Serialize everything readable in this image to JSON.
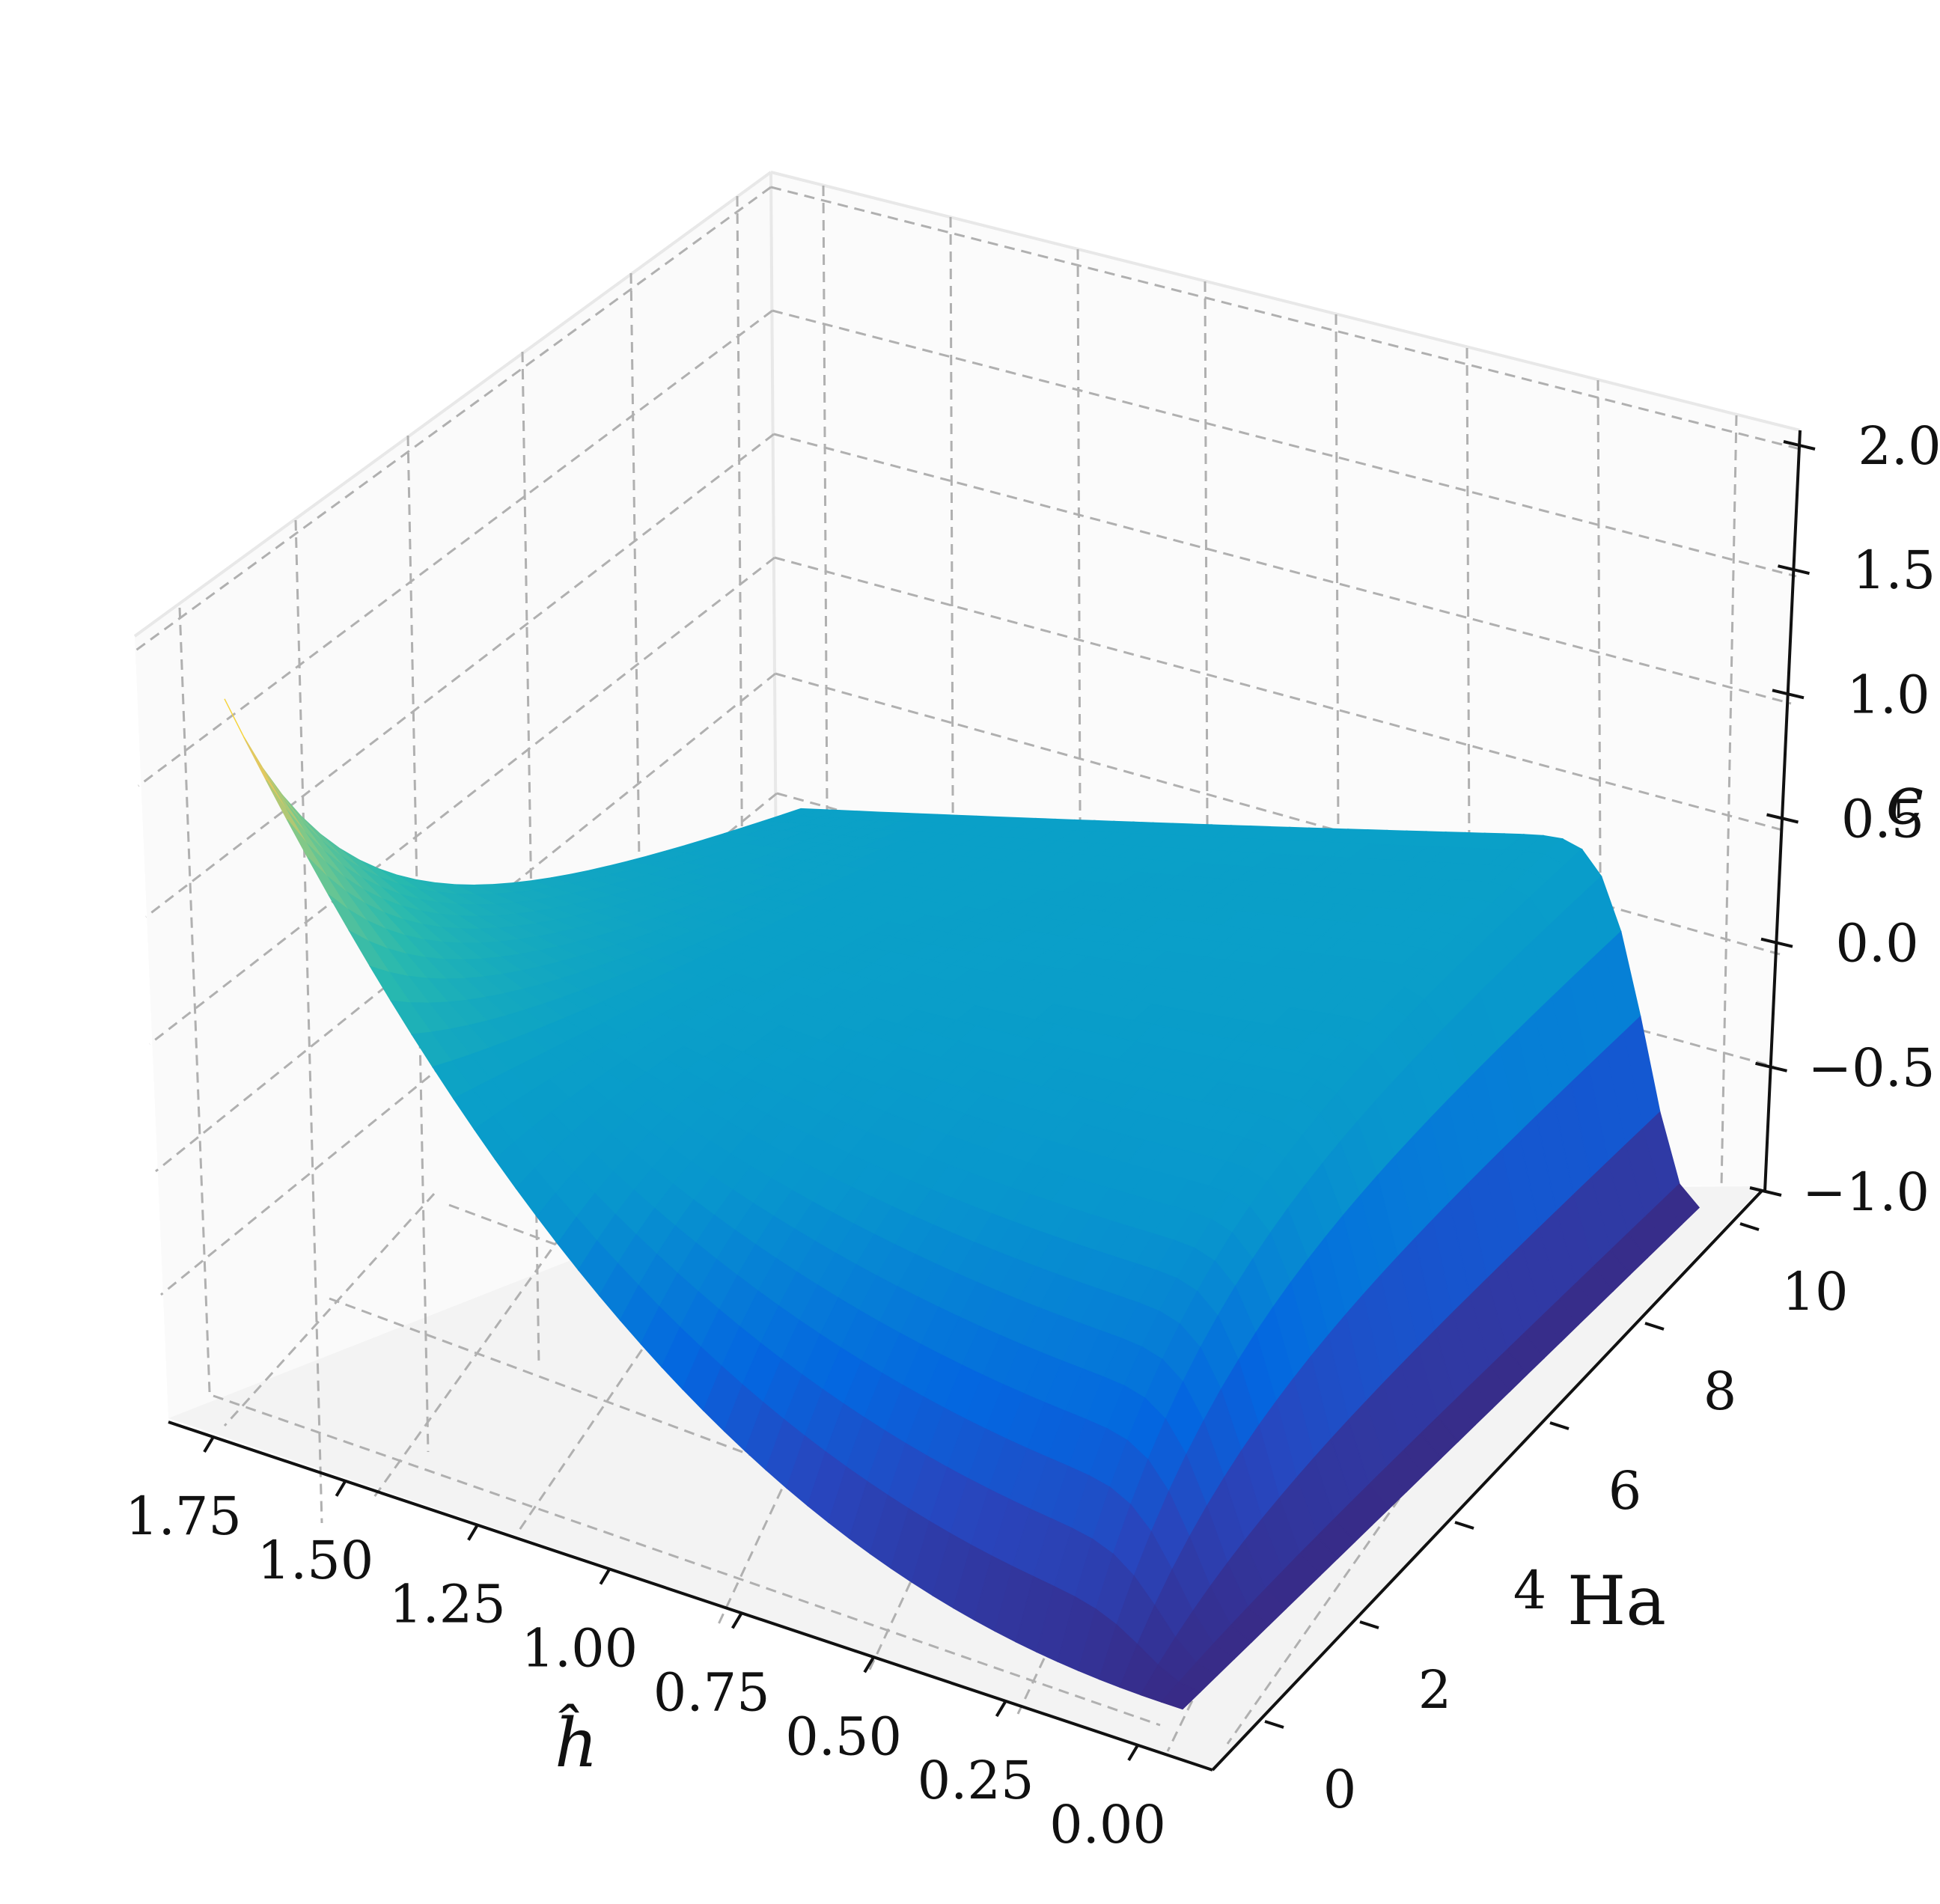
{
  "chart_data": {
    "type": "surface3d",
    "title": "",
    "xlabel": "ĥ",
    "ylabel": "Ha",
    "zlabel": "c",
    "x_ticks": [
      "1.75",
      "1.50",
      "1.25",
      "1.00",
      "0.75",
      "0.50",
      "0.25",
      "0.00"
    ],
    "y_ticks": [
      "0",
      "2",
      "4",
      "6",
      "8",
      "10"
    ],
    "z_ticks": [
      "−1.0",
      "−0.5",
      "0.0",
      "0.5",
      "1.0",
      "1.5",
      "2.0"
    ],
    "x_range": [
      0,
      1.85
    ],
    "y_range": [
      0,
      10.5
    ],
    "z_range": [
      -1.0,
      2.0
    ],
    "grid": true,
    "colormap": "viridis-like (dark blue → cyan → yellow)",
    "colors": {
      "low": "#3a2a80",
      "mid_low": "#0466e0",
      "mid": "#0a9fc9",
      "mid_high": "#5cc49a",
      "high": "#fff000"
    },
    "surface_corners": {
      "h_0_Ha_0": -0.95,
      "h_0_Ha_10": -0.95,
      "h_1.8_Ha_10": 0.55,
      "h_1.8_Ha_0": 1.85
    },
    "surface_profile_Ha_10": {
      "h": [
        0.0,
        0.1,
        0.2,
        0.3,
        0.5,
        1.0,
        1.5,
        1.8
      ],
      "c": [
        -0.95,
        -0.7,
        -0.1,
        0.35,
        0.45,
        0.5,
        0.53,
        0.55
      ]
    },
    "surface_profile_Ha_0": {
      "h": [
        0.0,
        0.25,
        0.5,
        0.75,
        1.0,
        1.25,
        1.5,
        1.75,
        1.8
      ],
      "c": [
        -0.95,
        -0.9,
        -0.75,
        -0.5,
        -0.2,
        0.15,
        0.65,
        1.5,
        1.85
      ]
    }
  }
}
